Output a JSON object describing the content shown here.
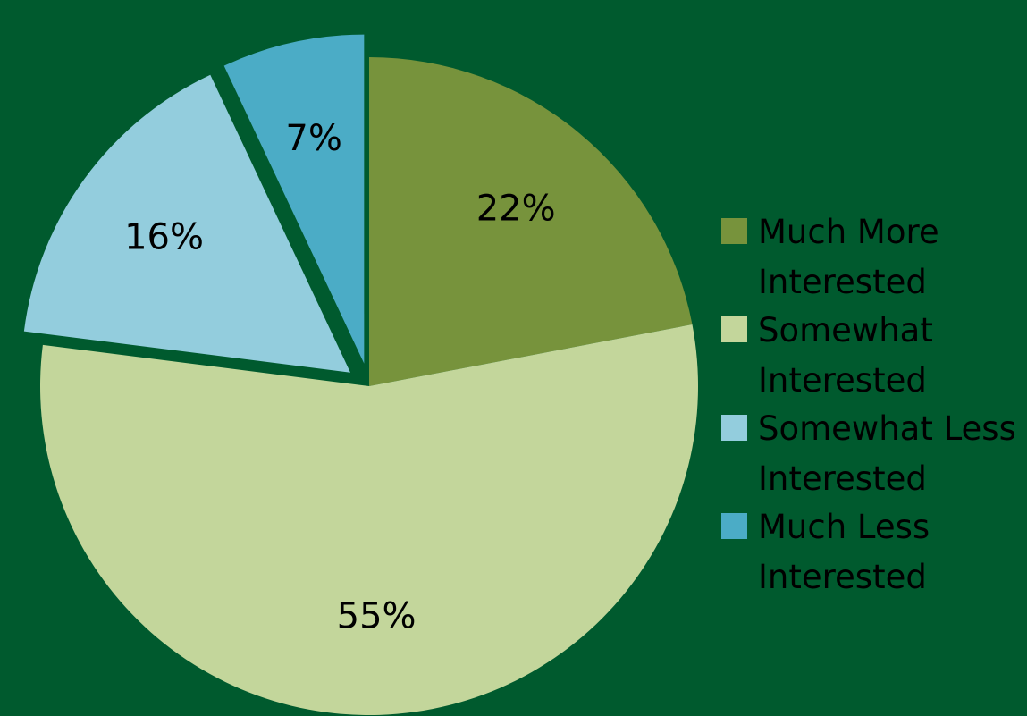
{
  "chart_data": {
    "type": "pie",
    "title": "",
    "start_angle_deg": 0,
    "direction": "clockwise",
    "slices": [
      {
        "label": "Much More Interested",
        "value": 22,
        "display": "22%",
        "color": "#77933c",
        "exploded": false
      },
      {
        "label": "Somewhat Interested",
        "value": 55,
        "display": "55%",
        "color": "#c3d69b",
        "exploded": false
      },
      {
        "label": "Somewhat Less Interested",
        "value": 16,
        "display": "16%",
        "color": "#93cddd",
        "exploded": true
      },
      {
        "label": "Much Less Interested",
        "value": 7,
        "display": "7%",
        "color": "#4bacc6",
        "exploded": true
      }
    ],
    "legend": {
      "position": "right",
      "items": [
        {
          "label": "Much More Interested",
          "color": "#77933c"
        },
        {
          "label": "Somewhat Interested",
          "color": "#c3d69b"
        },
        {
          "label": "Somewhat Less Interested",
          "color": "#93cddd"
        },
        {
          "label": "Much Less Interested",
          "color": "#4bacc6"
        }
      ]
    }
  },
  "background_color": "#005a2e"
}
